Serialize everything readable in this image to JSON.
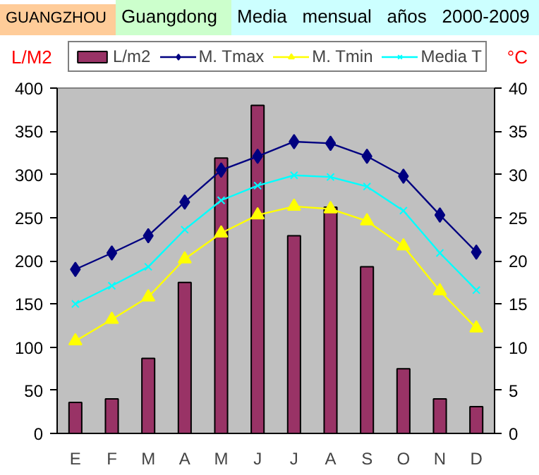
{
  "chart_data": {
    "type": "bar",
    "title": "GUANGZHOU",
    "subtitle": "Guangdong",
    "annotations": [
      "Media   mensual   años   2000-2009"
    ],
    "ylabel": "L/M2",
    "y2label": "°C",
    "categories": [
      "E",
      "F",
      "M",
      "A",
      "M",
      "J",
      "J",
      "A",
      "S",
      "O",
      "N",
      "D"
    ],
    "series": [
      {
        "name": "L/m2",
        "color": "#993366",
        "values": [
          36,
          40,
          87,
          175,
          319,
          380,
          229,
          262,
          193,
          75,
          40,
          31
        ]
      },
      {
        "name": "M. Tmax",
        "type": "line",
        "axis": "y2",
        "marker": "diamond",
        "color": "#000080",
        "values": [
          19.0,
          20.9,
          22.9,
          26.8,
          30.5,
          32.1,
          33.8,
          33.6,
          32.1,
          29.8,
          25.3,
          21.0
        ]
      },
      {
        "name": "M. Tmin",
        "type": "line",
        "axis": "y2",
        "marker": "triangle",
        "color": "#ffff00",
        "values": [
          10.7,
          13.2,
          15.8,
          20.2,
          23.2,
          25.3,
          26.3,
          26.0,
          24.6,
          21.7,
          16.5,
          12.2
        ]
      },
      {
        "name": "Media T",
        "type": "line",
        "axis": "y2",
        "marker": "cross",
        "color": "#00ffff",
        "values": [
          15.0,
          17.1,
          19.3,
          23.6,
          27.0,
          28.7,
          29.9,
          29.7,
          28.6,
          25.8,
          20.9,
          16.6
        ]
      }
    ],
    "ylim": [
      0,
      400
    ],
    "yticks": [
      0,
      50,
      100,
      150,
      200,
      250,
      300,
      350,
      400
    ],
    "y2lim": [
      0,
      40
    ],
    "y2ticks": [
      0,
      5,
      10,
      15,
      20,
      25,
      30,
      35,
      40
    ],
    "grid": false,
    "legend": "top"
  }
}
